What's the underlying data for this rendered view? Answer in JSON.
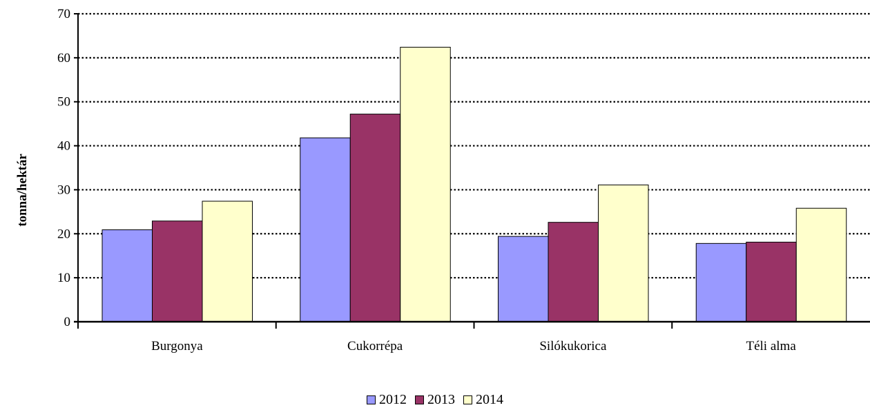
{
  "chart_data": {
    "type": "bar",
    "title": "",
    "xlabel": "",
    "ylabel": "tonna/hektár",
    "ylim": [
      0,
      70
    ],
    "yticks": [
      0,
      10,
      20,
      30,
      40,
      50,
      60,
      70
    ],
    "grid": true,
    "legend_position": "bottom",
    "categories": [
      "Burgonya",
      "Cukorrépa",
      "Silókukorica",
      "Téli alma"
    ],
    "series": [
      {
        "name": "2012",
        "color": "#9999ff",
        "values": [
          20.9,
          41.8,
          19.4,
          17.8
        ]
      },
      {
        "name": "2013",
        "color": "#993366",
        "values": [
          22.9,
          47.2,
          22.6,
          18.1
        ]
      },
      {
        "name": "2014",
        "color": "#ffffcc",
        "values": [
          27.4,
          62.4,
          31.1,
          25.8
        ]
      }
    ]
  }
}
